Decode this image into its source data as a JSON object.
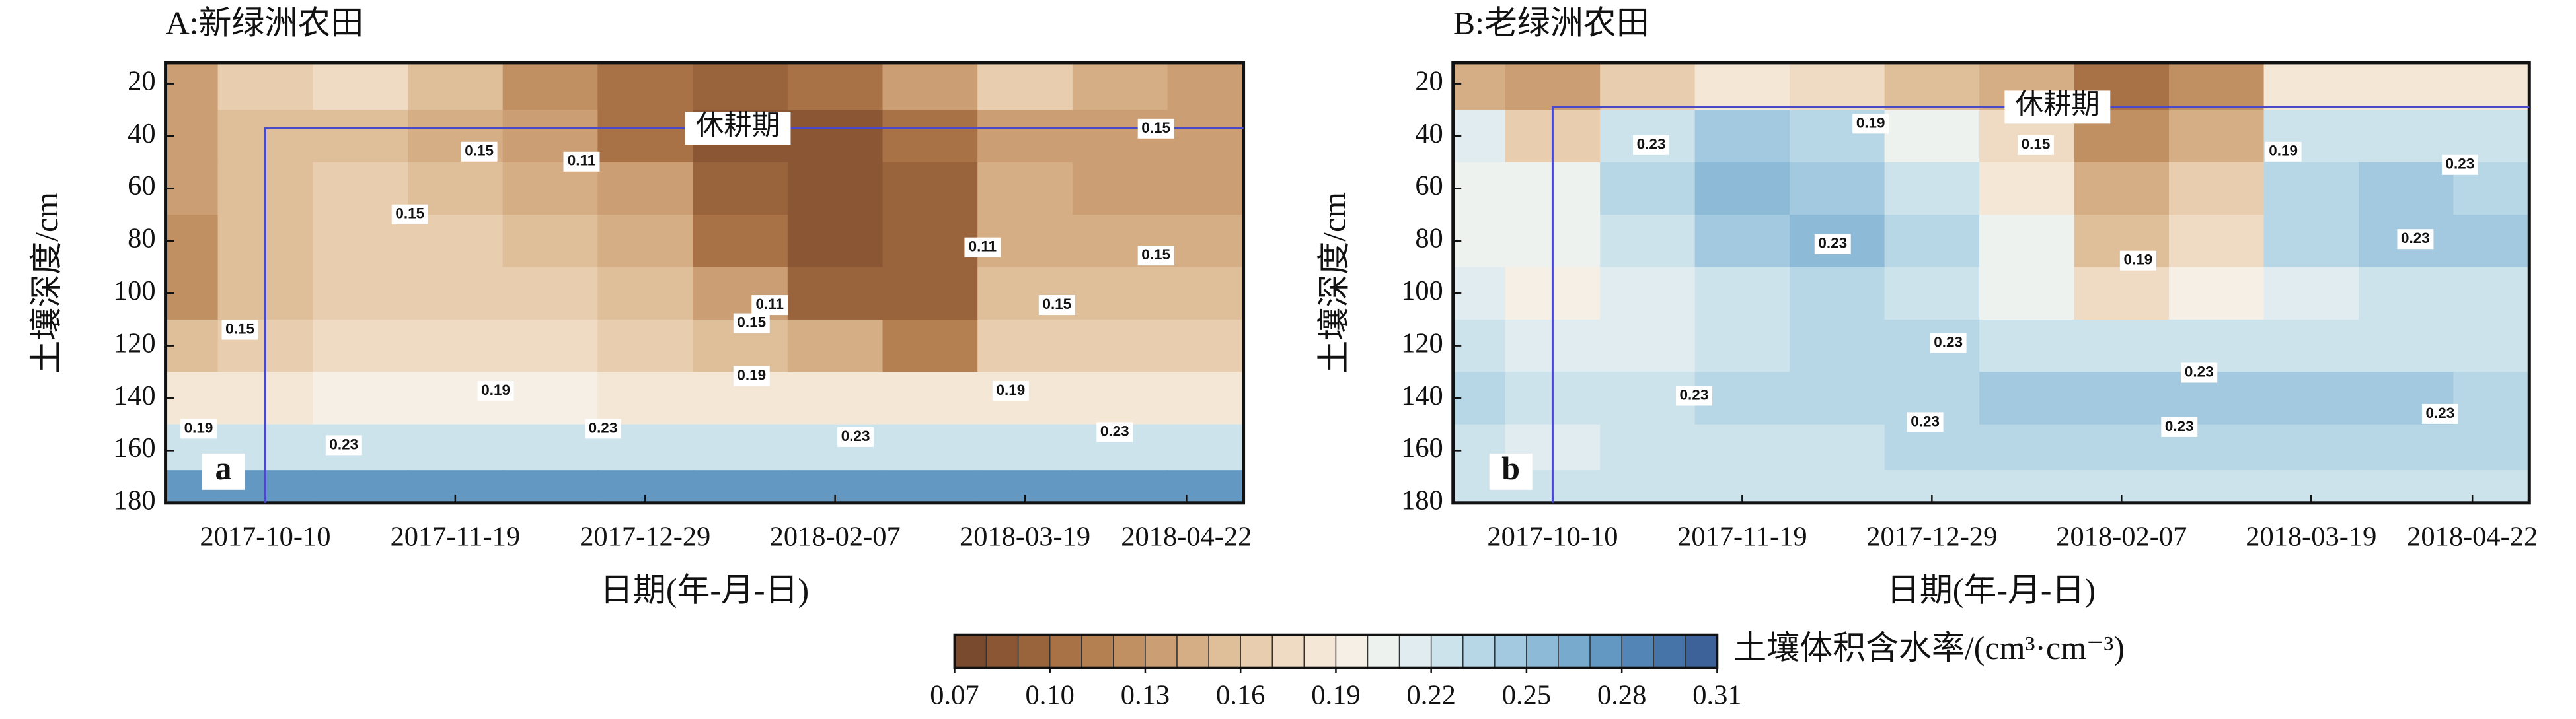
{
  "chart_data": [
    {
      "type": "heatmap",
      "title": "A:新绿洲农田",
      "letter": "a",
      "xlabel": "日期(年-月-日)",
      "ylabel": "土壤深度/cm",
      "x": [
        "2017-09-20",
        "2017-10-10",
        "2017-10-30",
        "2017-11-19",
        "2017-12-09",
        "2017-12-29",
        "2018-01-18",
        "2018-02-07",
        "2018-02-27",
        "2018-03-19",
        "2018-04-08",
        "2018-04-28"
      ],
      "y": [
        20,
        40,
        60,
        80,
        100,
        120,
        140,
        160,
        175
      ],
      "values": [
        [
          0.13,
          0.16,
          0.17,
          0.15,
          0.12,
          0.1,
          0.09,
          0.1,
          0.13,
          0.16,
          0.14,
          0.13
        ],
        [
          0.13,
          0.15,
          0.15,
          0.14,
          0.13,
          0.1,
          0.08,
          0.08,
          0.1,
          0.13,
          0.13,
          0.13
        ],
        [
          0.13,
          0.15,
          0.16,
          0.15,
          0.14,
          0.13,
          0.09,
          0.08,
          0.09,
          0.14,
          0.13,
          0.13
        ],
        [
          0.12,
          0.15,
          0.16,
          0.16,
          0.15,
          0.14,
          0.1,
          0.08,
          0.09,
          0.14,
          0.14,
          0.14
        ],
        [
          0.12,
          0.15,
          0.16,
          0.16,
          0.16,
          0.15,
          0.13,
          0.09,
          0.09,
          0.15,
          0.15,
          0.15
        ],
        [
          0.15,
          0.16,
          0.17,
          0.17,
          0.17,
          0.16,
          0.15,
          0.14,
          0.11,
          0.16,
          0.16,
          0.16
        ],
        [
          0.18,
          0.18,
          0.19,
          0.19,
          0.19,
          0.18,
          0.18,
          0.18,
          0.18,
          0.18,
          0.18,
          0.18
        ],
        [
          0.22,
          0.22,
          0.22,
          0.22,
          0.22,
          0.22,
          0.22,
          0.22,
          0.22,
          0.22,
          0.22,
          0.22
        ],
        [
          0.27,
          0.27,
          0.27,
          0.27,
          0.27,
          0.27,
          0.27,
          0.27,
          0.27,
          0.27,
          0.27,
          0.27
        ]
      ],
      "xlim": [
        "2017-09-19",
        "2018-05-04"
      ],
      "xticks": [
        "2017-10-10",
        "2017-11-19",
        "2017-12-29",
        "2018-02-07",
        "2018-03-19",
        "2018-04-22"
      ],
      "ylim": [
        12,
        180
      ],
      "y_inverted": true,
      "yticks": [
        20,
        40,
        60,
        80,
        100,
        120,
        140,
        160,
        180
      ],
      "fallow_period": {
        "label": "休耕期",
        "start": "2017-10-10",
        "depth": 37
      },
      "contour_labels": [
        "0.15",
        "0.15",
        "0.11",
        "0.15",
        "0.11",
        "0.15",
        "0.15",
        "0.11",
        "0.15",
        "0.15",
        "0.19",
        "0.19",
        "0.19",
        "0.19",
        "0.23",
        "0.23",
        "0.23",
        "0.23"
      ]
    },
    {
      "type": "heatmap",
      "title": "B:老绿洲农田",
      "letter": "b",
      "xlabel": "日期(年-月-日)",
      "ylabel": "土壤深度/cm",
      "x": [
        "2017-09-20",
        "2017-10-10",
        "2017-10-30",
        "2017-11-19",
        "2017-12-09",
        "2017-12-29",
        "2018-01-18",
        "2018-02-07",
        "2018-02-27",
        "2018-03-19",
        "2018-04-08",
        "2018-04-28"
      ],
      "y": [
        20,
        40,
        60,
        80,
        100,
        120,
        140,
        160,
        175
      ],
      "values": [
        [
          0.14,
          0.13,
          0.16,
          0.18,
          0.17,
          0.15,
          0.14,
          0.1,
          0.12,
          0.18,
          0.18,
          0.18
        ],
        [
          0.21,
          0.16,
          0.22,
          0.24,
          0.23,
          0.2,
          0.17,
          0.12,
          0.14,
          0.22,
          0.22,
          0.22
        ],
        [
          0.2,
          0.2,
          0.23,
          0.25,
          0.24,
          0.22,
          0.18,
          0.14,
          0.16,
          0.23,
          0.24,
          0.23
        ],
        [
          0.2,
          0.2,
          0.22,
          0.24,
          0.25,
          0.23,
          0.2,
          0.15,
          0.17,
          0.23,
          0.24,
          0.24
        ],
        [
          0.21,
          0.19,
          0.21,
          0.22,
          0.23,
          0.22,
          0.2,
          0.17,
          0.19,
          0.21,
          0.22,
          0.22
        ],
        [
          0.22,
          0.21,
          0.21,
          0.22,
          0.23,
          0.23,
          0.22,
          0.22,
          0.22,
          0.22,
          0.22,
          0.22
        ],
        [
          0.23,
          0.22,
          0.22,
          0.23,
          0.23,
          0.23,
          0.24,
          0.24,
          0.24,
          0.24,
          0.24,
          0.23
        ],
        [
          0.22,
          0.21,
          0.22,
          0.22,
          0.22,
          0.23,
          0.23,
          0.23,
          0.23,
          0.23,
          0.23,
          0.23
        ],
        [
          0.22,
          0.22,
          0.22,
          0.22,
          0.22,
          0.22,
          0.22,
          0.22,
          0.22,
          0.22,
          0.22,
          0.22
        ]
      ],
      "xlim": [
        "2017-09-19",
        "2018-05-04"
      ],
      "xticks": [
        "2017-10-10",
        "2017-11-19",
        "2017-12-29",
        "2018-02-07",
        "2018-03-19",
        "2018-04-22"
      ],
      "ylim": [
        12,
        180
      ],
      "y_inverted": true,
      "yticks": [
        20,
        40,
        60,
        80,
        100,
        120,
        140,
        160,
        180
      ],
      "fallow_period": {
        "label": "休耕期",
        "start": "2017-10-10",
        "depth": 29
      },
      "contour_labels": [
        "0.23",
        "0.19",
        "0.15",
        "0.19",
        "0.23",
        "0.23",
        "0.19",
        "0.23",
        "0.23",
        "0.23",
        "0.23",
        "0.23",
        "0.23",
        "0.23"
      ]
    }
  ],
  "colorbar": {
    "label": "土壤体积含水率/(cm³·cm⁻³)",
    "lim": [
      0.07,
      0.31
    ],
    "colors": [
      "#7a4a2e",
      "#8a5634",
      "#99633c",
      "#a87146",
      "#b48052",
      "#c08f62",
      "#cb9f73",
      "#d5ae86",
      "#dfbe9a",
      "#e8cdae",
      "#efdbc3",
      "#f4e7d6",
      "#f5efe6",
      "#eef2ee",
      "#e0ecef",
      "#cde3ec",
      "#b8d7e6",
      "#a2c9df",
      "#8cbad7",
      "#77aacd",
      "#6398c2",
      "#5386b6",
      "#4674a8",
      "#3c6299"
    ],
    "ticks": [
      0.07,
      {
        "value": 0.1,
        "label": "0.10"
      },
      0.13,
      0.16,
      0.19,
      0.22,
      0.25,
      0.28,
      0.31
    ]
  }
}
